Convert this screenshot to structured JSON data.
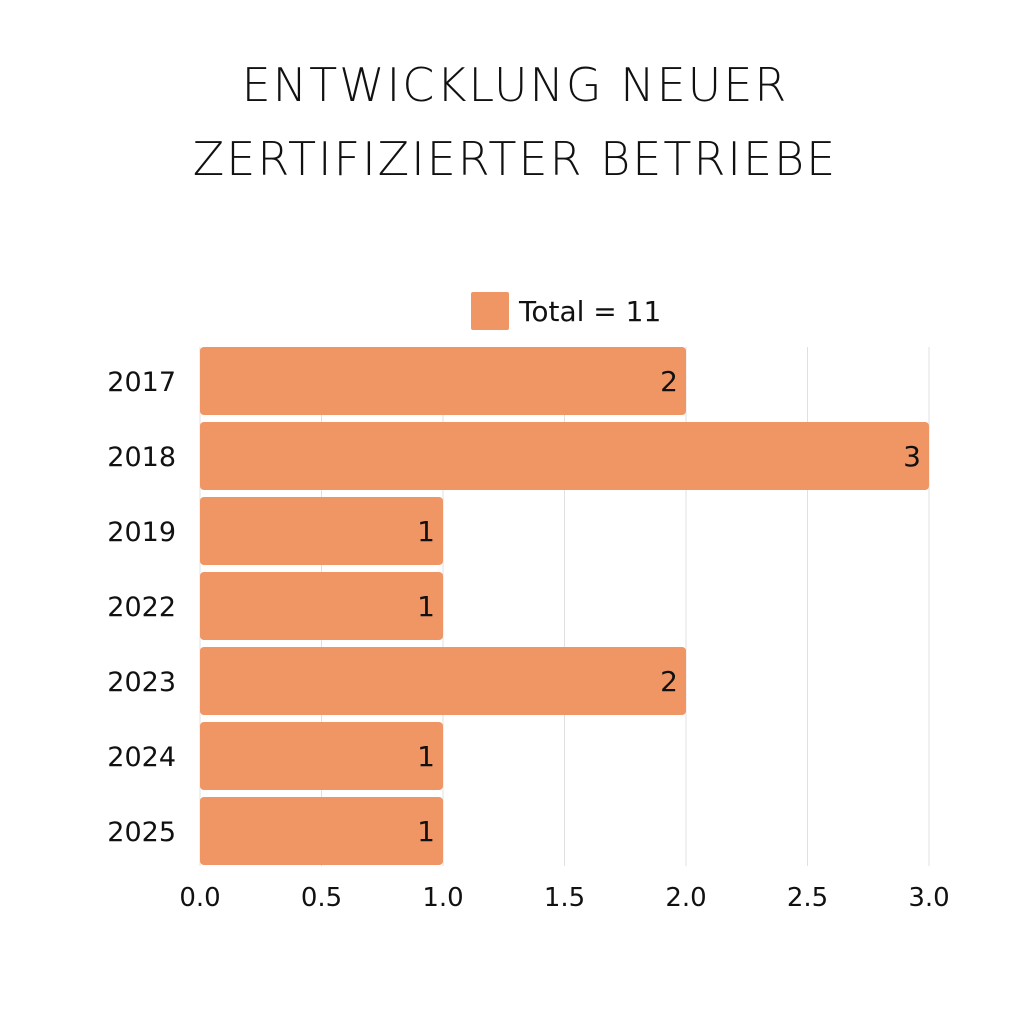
{
  "chart_data": {
    "type": "bar",
    "orientation": "horizontal",
    "title_lines": [
      "ENTWICKLUNG NEUER",
      "ZERTIFIZIERTER BETRIEBE"
    ],
    "categories": [
      "2017",
      "2018",
      "2019",
      "2022",
      "2023",
      "2024",
      "2025"
    ],
    "series": [
      {
        "name": "Total = 11",
        "values": [
          2,
          3,
          1,
          1,
          2,
          1,
          1
        ]
      }
    ],
    "data_labels": [
      "2",
      "3",
      "1",
      "1",
      "2",
      "1",
      "1"
    ],
    "xlim": [
      0,
      3
    ],
    "xticks": [
      "0.0",
      "0.5",
      "1.0",
      "1.5",
      "2.0",
      "2.5",
      "3.0"
    ],
    "xtick_values": [
      0,
      0.5,
      1,
      1.5,
      2,
      2.5,
      3
    ],
    "grid": "vertical",
    "legend_position": "top-center",
    "colors": {
      "bar": "#F09665",
      "grid": "#E0E0E0",
      "text": "#111111"
    }
  }
}
